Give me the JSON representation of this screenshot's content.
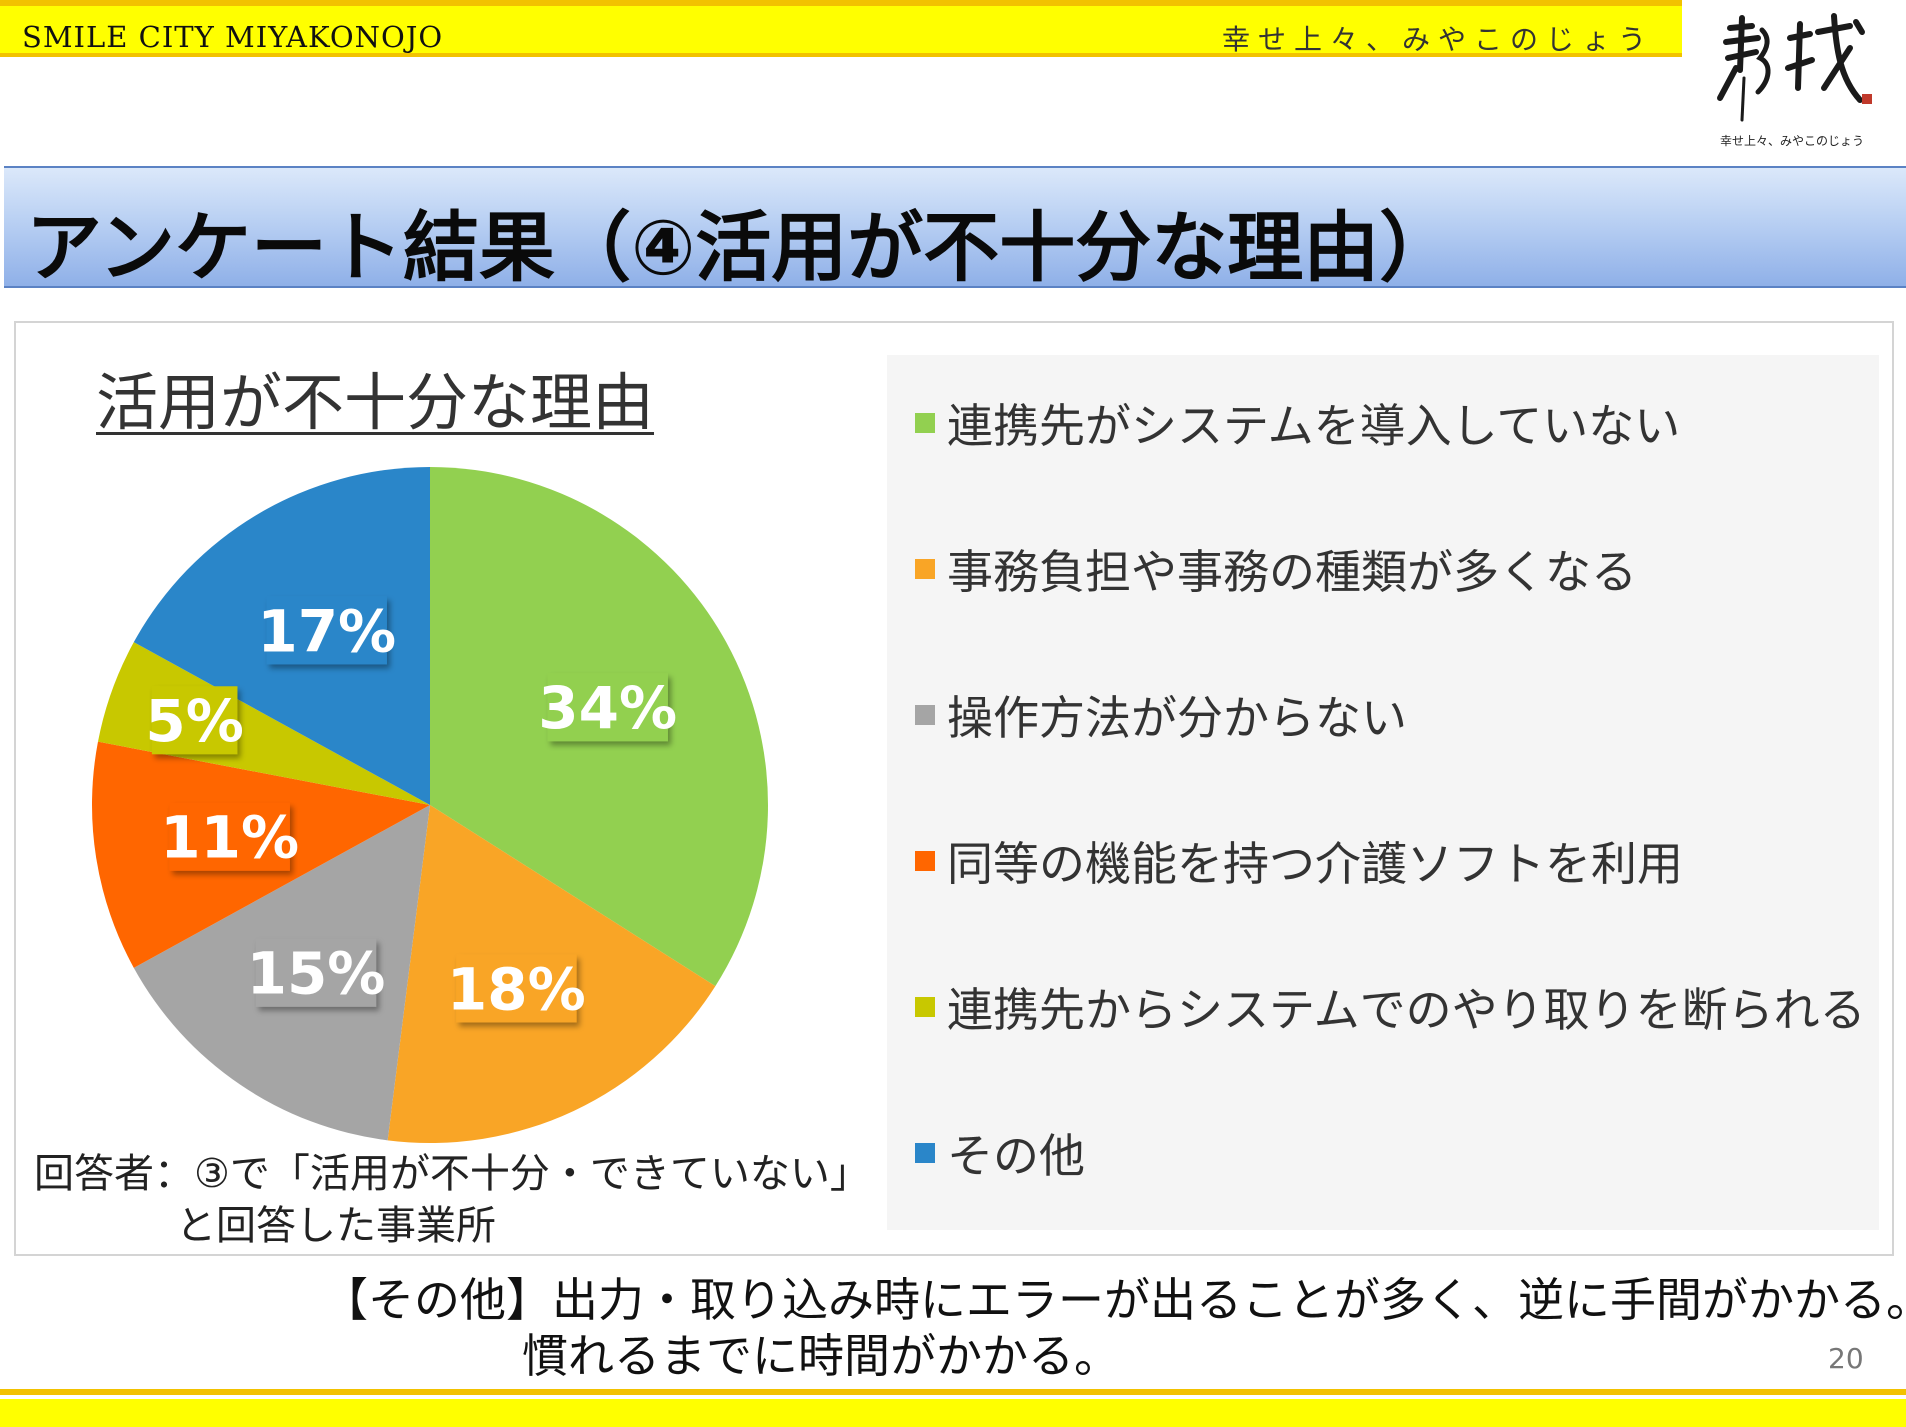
{
  "header": {
    "brand": "SMILE CITY MIYAKONOJO",
    "slogan": "幸せ上々、みやこのじょう",
    "logo_caption": "幸せ上々、みやこのじょう"
  },
  "page_title": "アンケート結果（④活用が不十分な理由）",
  "colors": {
    "green": "#92d050",
    "orange": "#f9a526",
    "gray": "#a5a5a5",
    "red_orange": "#ff6600",
    "olive": "#c8c800",
    "blue": "#2a86c9"
  },
  "chart_data": {
    "type": "pie",
    "title": "活用が不十分な理由",
    "legend_position": "right",
    "slices": [
      {
        "label": "連携先がシステムを導入していない",
        "value": 34,
        "display": "34%",
        "color": "#92d050"
      },
      {
        "label": "事務負担や事務の種類が多くなる",
        "value": 18,
        "display": "18%",
        "color": "#f9a526"
      },
      {
        "label": "操作方法が分からない",
        "value": 15,
        "display": "15%",
        "color": "#a5a5a5"
      },
      {
        "label": "同等の機能を持つ介護ソフトを利用",
        "value": 11,
        "display": "11%",
        "color": "#ff6600"
      },
      {
        "label": "連携先からシステムでのやり取りを断られる",
        "value": 5,
        "display": "5%",
        "color": "#c8c800"
      },
      {
        "label": "その他",
        "value": 17,
        "display": "17%",
        "color": "#2a86c9"
      }
    ]
  },
  "respondent": {
    "line1": "回答者：③で「活用が不十分・できていない」",
    "line2": "と回答した事業所"
  },
  "note": {
    "line1": "【その他】出力・取り込み時にエラーが出ることが多く、逆に手間がかかる。",
    "line2": "慣れるまでに時間がかかる。"
  },
  "page_number": "20"
}
